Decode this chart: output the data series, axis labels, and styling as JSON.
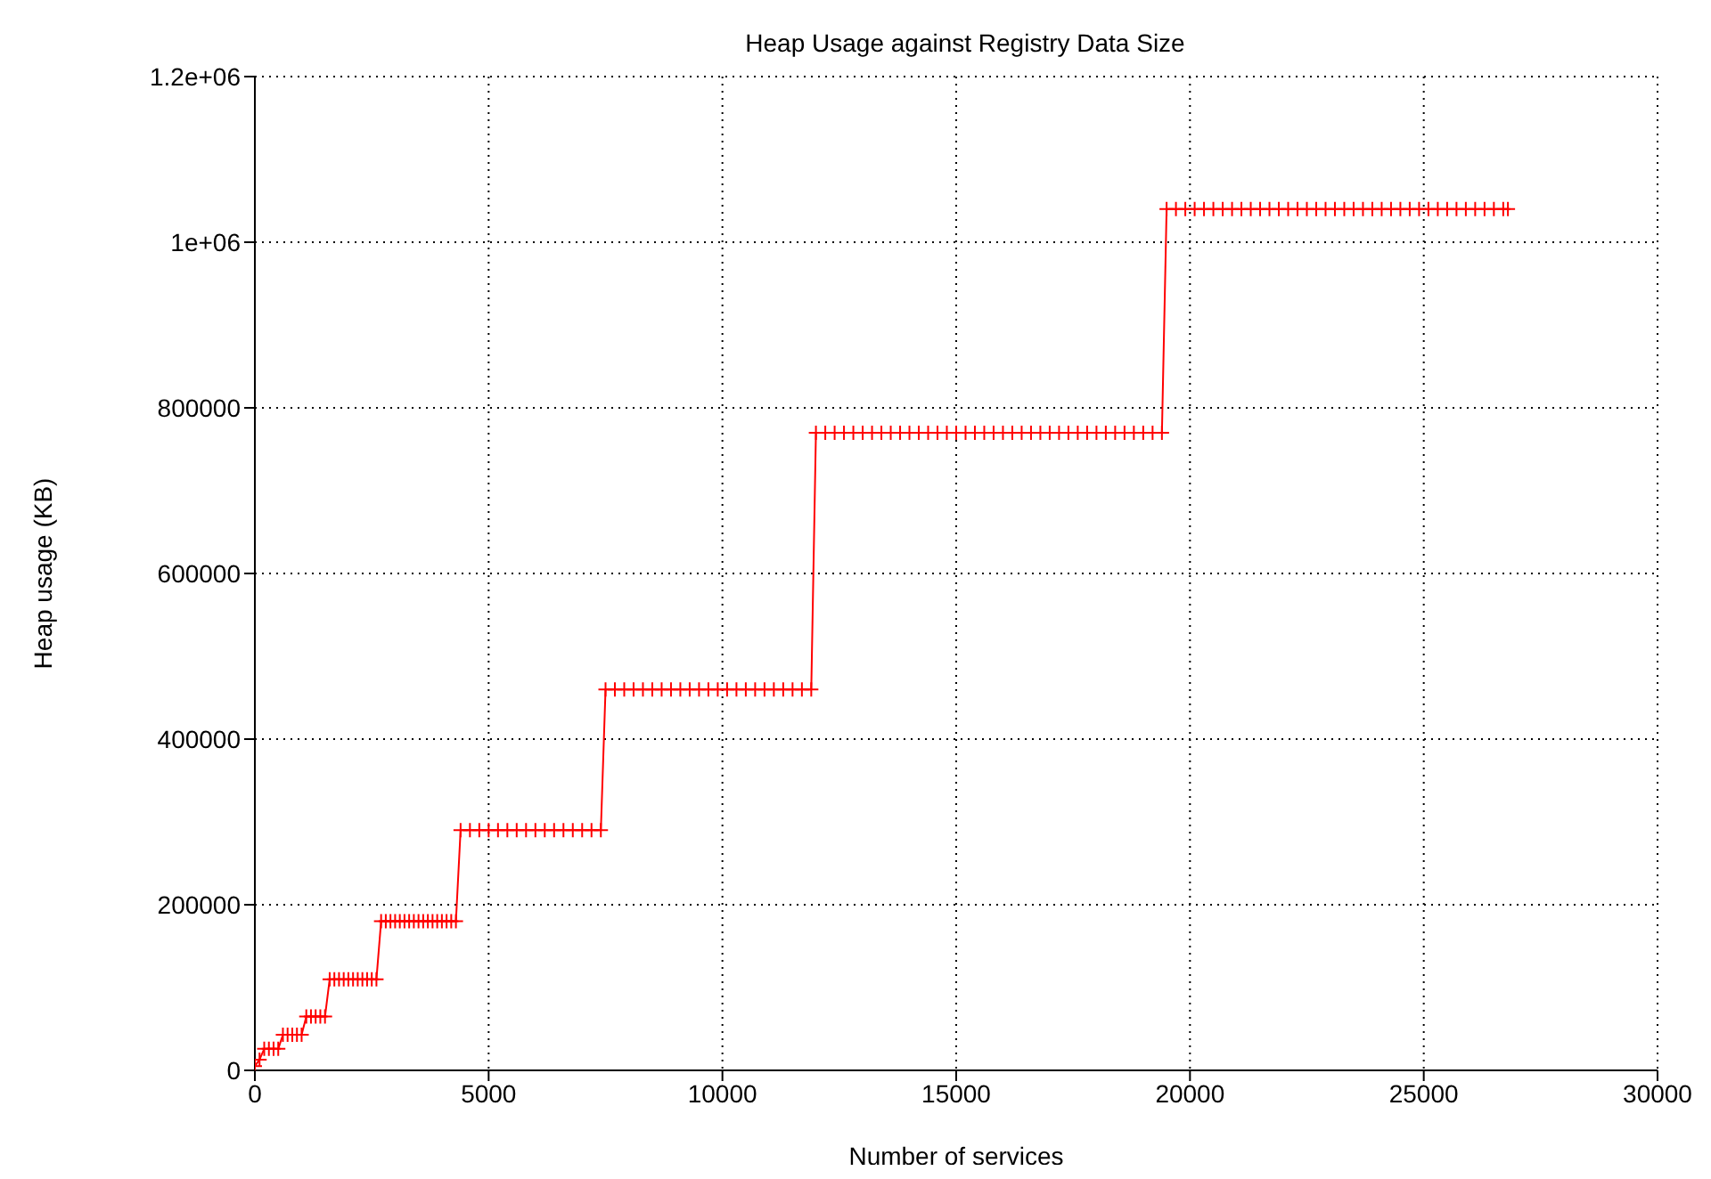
{
  "chart_data": {
    "type": "line",
    "title": "Heap Usage against Registry Data Size",
    "xlabel": "Number of services",
    "ylabel": "Heap usage (KB)",
    "x": [
      0,
      100,
      200,
      300,
      400,
      500,
      600,
      700,
      800,
      900,
      1000,
      1100,
      1200,
      1300,
      1400,
      1500,
      1600,
      1700,
      1800,
      1900,
      2000,
      2100,
      2200,
      2300,
      2400,
      2500,
      2600,
      2700,
      2800,
      2900,
      3000,
      3100,
      3200,
      3300,
      3400,
      3500,
      3600,
      3700,
      3800,
      3900,
      4000,
      4100,
      4200,
      4300,
      4400,
      4600,
      4800,
      5000,
      5200,
      5400,
      5600,
      5800,
      6000,
      6200,
      6400,
      6600,
      6800,
      7000,
      7200,
      7400,
      7500,
      7700,
      7900,
      8100,
      8300,
      8500,
      8700,
      8900,
      9100,
      9300,
      9500,
      9700,
      9900,
      10100,
      10300,
      10500,
      10700,
      10900,
      11100,
      11300,
      11500,
      11700,
      11900,
      12000,
      12200,
      12400,
      12600,
      12800,
      13000,
      13200,
      13400,
      13600,
      13800,
      14000,
      14200,
      14400,
      14600,
      14800,
      15000,
      15200,
      15400,
      15600,
      15800,
      16000,
      16200,
      16400,
      16600,
      16800,
      17000,
      17200,
      17400,
      17600,
      17800,
      18000,
      18200,
      18400,
      18600,
      18800,
      19000,
      19200,
      19400,
      19500,
      19700,
      19900,
      20100,
      20300,
      20500,
      20700,
      20900,
      21100,
      21300,
      21500,
      21700,
      21900,
      22100,
      22300,
      22500,
      22700,
      22900,
      23100,
      23300,
      23500,
      23700,
      23900,
      24100,
      24300,
      24500,
      24700,
      24900,
      25100,
      25300,
      25500,
      25700,
      25900,
      26100,
      26300,
      26500,
      26700,
      26800
    ],
    "series": [
      {
        "color": "#ff0000",
        "values": [
          5000,
          13000,
          26000,
          26000,
          26000,
          26000,
          43000,
          43000,
          43000,
          43000,
          43000,
          65000,
          65000,
          65000,
          65000,
          65000,
          110000,
          110000,
          110000,
          110000,
          110000,
          110000,
          110000,
          110000,
          110000,
          110000,
          110000,
          180000,
          180000,
          180000,
          180000,
          180000,
          180000,
          180000,
          180000,
          180000,
          180000,
          180000,
          180000,
          180000,
          180000,
          180000,
          180000,
          180000,
          290000,
          290000,
          290000,
          290000,
          290000,
          290000,
          290000,
          290000,
          290000,
          290000,
          290000,
          290000,
          290000,
          290000,
          290000,
          290000,
          460000,
          460000,
          460000,
          460000,
          460000,
          460000,
          460000,
          460000,
          460000,
          460000,
          460000,
          460000,
          460000,
          460000,
          460000,
          460000,
          460000,
          460000,
          460000,
          460000,
          460000,
          460000,
          460000,
          770000,
          770000,
          770000,
          770000,
          770000,
          770000,
          770000,
          770000,
          770000,
          770000,
          770000,
          770000,
          770000,
          770000,
          770000,
          770000,
          770000,
          770000,
          770000,
          770000,
          770000,
          770000,
          770000,
          770000,
          770000,
          770000,
          770000,
          770000,
          770000,
          770000,
          770000,
          770000,
          770000,
          770000,
          770000,
          770000,
          770000,
          770000,
          1040000,
          1040000,
          1040000,
          1040000,
          1040000,
          1040000,
          1040000,
          1040000,
          1040000,
          1040000,
          1040000,
          1040000,
          1040000,
          1040000,
          1040000,
          1040000,
          1040000,
          1040000,
          1040000,
          1040000,
          1040000,
          1040000,
          1040000,
          1040000,
          1040000,
          1040000,
          1040000,
          1040000,
          1040000,
          1040000,
          1040000,
          1040000,
          1040000,
          1040000,
          1040000,
          1040000,
          1040000,
          1040000
        ]
      }
    ],
    "xlim": [
      0,
      30000
    ],
    "xticks": [
      0,
      5000,
      10000,
      15000,
      20000,
      25000,
      30000
    ],
    "ylim": [
      0,
      1200000
    ],
    "yticks": [
      0,
      200000,
      400000,
      600000,
      800000,
      {
        "value": 1000000,
        "label": "1e+06"
      },
      {
        "value": 1200000,
        "label": "1.2e+06"
      }
    ],
    "grid": true,
    "marker": "cross",
    "line_style": "solid"
  }
}
